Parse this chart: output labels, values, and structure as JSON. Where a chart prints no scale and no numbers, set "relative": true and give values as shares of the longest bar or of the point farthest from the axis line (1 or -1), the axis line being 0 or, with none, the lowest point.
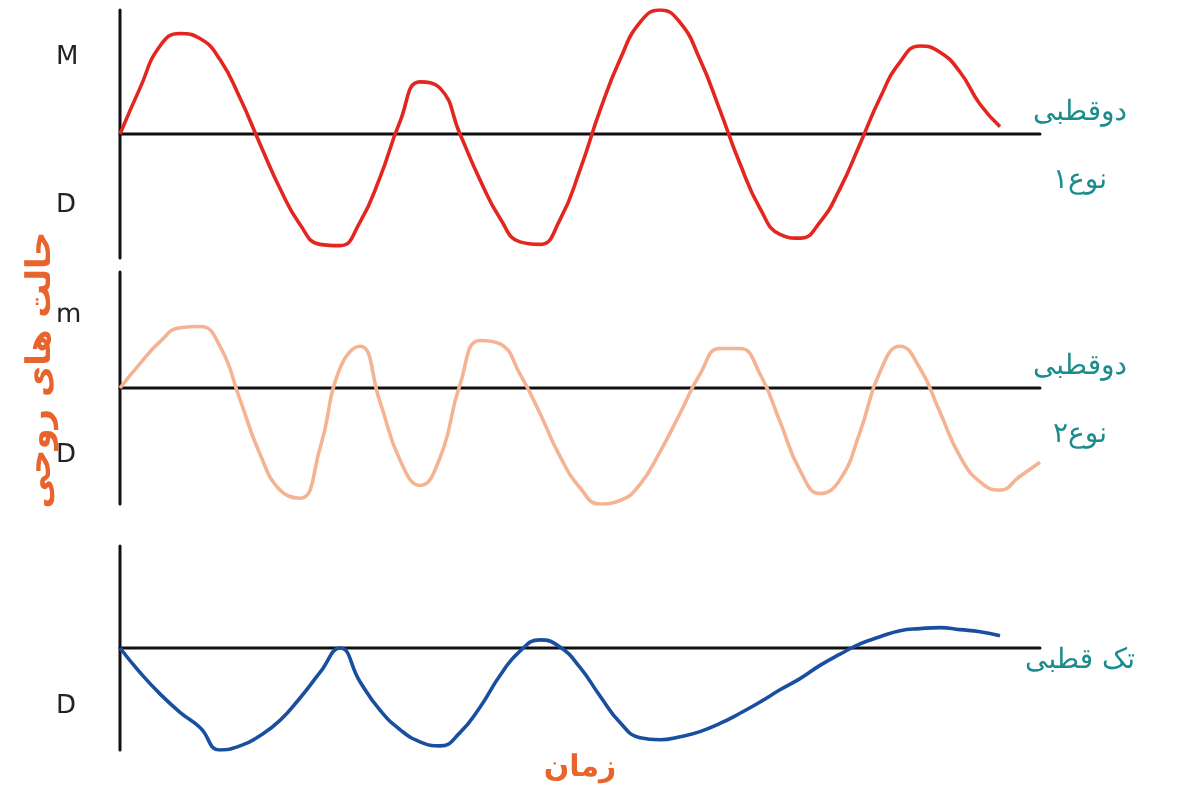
{
  "chart_data": [
    {
      "type": "line",
      "relative": true,
      "legend": false,
      "marker": "none",
      "annotations": [
        "M",
        "D"
      ],
      "categories": [
        null,
        null,
        null,
        null,
        null,
        null,
        null,
        null,
        null,
        null,
        null,
        null,
        null,
        null,
        null,
        null,
        null,
        null,
        null,
        null,
        null,
        null,
        null,
        null,
        null,
        null,
        null,
        null,
        null,
        null,
        null,
        null,
        null,
        null,
        null,
        null,
        null,
        null,
        null,
        null,
        null,
        null,
        null,
        null,
        null,
        null,
        null
      ],
      "series": [
        {
          "name": "دوقطبی\nنوع۱",
          "color": "#e3261f",
          "values": [
            0,
            0.37,
            0.71,
            0.81,
            0.77,
            0.6,
            0.29,
            -0.08,
            -0.44,
            -0.73,
            -0.89,
            -0.9,
            -0.71,
            -0.35,
            0.1,
            0.42,
            0.37,
            0,
            -0.37,
            -0.68,
            -0.87,
            -0.89,
            -0.69,
            -0.29,
            0.19,
            0.6,
            0.9,
            1,
            0.9,
            0.6,
            0.19,
            -0.24,
            -0.6,
            -0.81,
            -0.84,
            -0.71,
            -0.44,
            -0.08,
            0.29,
            0.58,
            0.71,
            0.66,
            0.5,
            0.24,
            0.06,
            null,
            null
          ]
        }
      ]
    },
    {
      "type": "line",
      "relative": true,
      "legend": false,
      "marker": "none",
      "annotations": [
        "m",
        "D"
      ],
      "ylabel": "حالت های روحی",
      "categories": [
        null,
        null,
        null,
        null,
        null,
        null,
        null,
        null,
        null,
        null,
        null,
        null,
        null,
        null,
        null,
        null,
        null,
        null,
        null,
        null,
        null,
        null,
        null,
        null,
        null,
        null,
        null,
        null,
        null,
        null,
        null,
        null,
        null,
        null,
        null,
        null,
        null,
        null,
        null,
        null,
        null,
        null,
        null,
        null,
        null,
        null,
        null
      ],
      "series": [
        {
          "name": "دوقطبی\nنوع۲",
          "color": "#f4b493",
          "values": [
            0,
            0.21,
            0.4,
            0.52,
            0.53,
            0.36,
            -0.1,
            -0.57,
            -0.88,
            -0.95,
            -0.52,
            0.17,
            0.36,
            -0.12,
            -0.62,
            -0.84,
            -0.6,
            0.03,
            0.41,
            0.38,
            0.12,
            -0.22,
            -0.59,
            -0.86,
            -1,
            -0.97,
            -0.83,
            -0.55,
            -0.22,
            0.12,
            0.34,
            0.34,
            0.12,
            -0.29,
            -0.71,
            -0.91,
            -0.79,
            -0.38,
            0.14,
            0.36,
            0.17,
            -0.21,
            -0.59,
            -0.81,
            -0.88,
            -0.76,
            -0.64
          ]
        }
      ]
    },
    {
      "type": "line",
      "relative": true,
      "legend": false,
      "marker": "none",
      "annotations": [
        "D"
      ],
      "xlabel": "زمان",
      "categories": [
        null,
        null,
        null,
        null,
        null,
        null,
        null,
        null,
        null,
        null,
        null,
        null,
        null,
        null,
        null,
        null,
        null,
        null,
        null,
        null,
        null,
        null,
        null,
        null,
        null,
        null,
        null,
        null,
        null,
        null,
        null,
        null,
        null,
        null,
        null,
        null,
        null,
        null,
        null,
        null,
        null,
        null,
        null,
        null,
        null,
        null,
        null
      ],
      "series": [
        {
          "name": "تک قطبی",
          "color": "#1a4fa0",
          "values": [
            0,
            -0.24,
            -0.45,
            -0.63,
            -0.78,
            -1,
            -0.96,
            -0.86,
            -0.71,
            -0.49,
            -0.24,
            0,
            -0.33,
            -0.61,
            -0.8,
            -0.92,
            -0.96,
            -0.83,
            -0.58,
            -0.27,
            -0.03,
            0.08,
            0.01,
            -0.19,
            -0.47,
            -0.73,
            -0.88,
            -0.9,
            -0.87,
            -0.82,
            -0.74,
            -0.64,
            -0.53,
            -0.41,
            -0.3,
            -0.17,
            -0.06,
            0.04,
            0.11,
            0.17,
            0.19,
            0.2,
            0.18,
            0.16,
            0.12,
            null,
            null
          ]
        }
      ]
    }
  ]
}
